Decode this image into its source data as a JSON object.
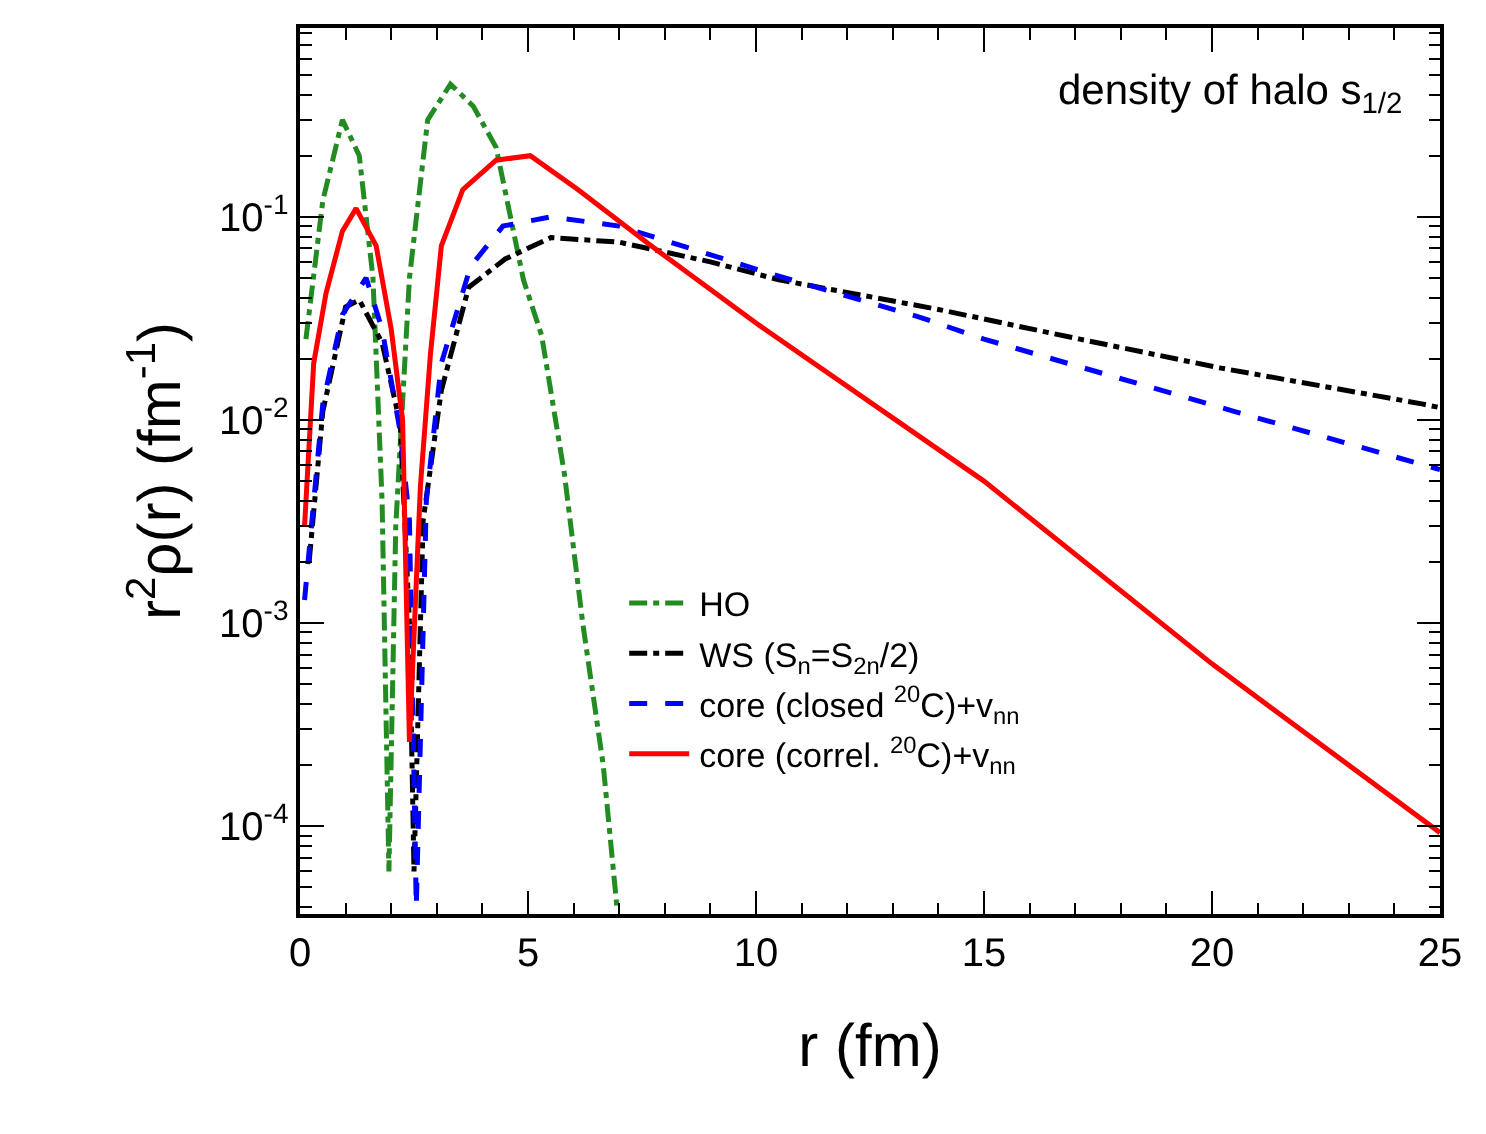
{
  "chart_data": {
    "type": "line",
    "title": "density of halo s$_{1/2}$",
    "xlabel": "r (fm)",
    "ylabel": "r$^{2}$ρ(r) (fm$^{-1}$)",
    "log": "y",
    "legend": "bottom",
    "marker": "none",
    "xlim": [
      0,
      25
    ],
    "xticks": [
      0,
      5,
      10,
      15,
      20,
      25
    ],
    "ylim": [
      3.7e-05,
      0.85
    ],
    "yticks": [
      {
        "value": 0.1,
        "label": "10$^{-1}$"
      },
      {
        "value": 0.01,
        "label": "10$^{-2}$"
      },
      {
        "value": 0.001,
        "label": "10$^{-3}$"
      },
      {
        "value": 0.0001,
        "label": "10$^{-4}$"
      }
    ],
    "series": [
      {
        "name": "HO",
        "color": "#228b22",
        "line_style": "dashdot",
        "x": [
          0.13,
          0.5,
          0.93,
          1.3,
          1.6,
          1.8,
          1.95,
          2.1,
          2.4,
          2.8,
          3.3,
          3.8,
          4.3,
          4.9,
          5.3,
          5.8,
          6.2,
          6.65,
          6.95
        ],
        "values": [
          0.025,
          0.12,
          0.3,
          0.2,
          0.05,
          0.004,
          6e-05,
          0.003,
          0.05,
          0.3,
          0.45,
          0.35,
          0.22,
          0.049,
          0.026,
          0.0054,
          0.001,
          0.0002,
          4e-05
        ]
      },
      {
        "name": "WS (S$_{n}$=S$_{2n}$/2)",
        "color": "#000000",
        "line_style": "dashdot",
        "x": [
          0.2,
          0.5,
          1.0,
          1.3,
          1.8,
          2.2,
          2.4,
          2.5,
          2.7,
          3.1,
          3.7,
          4.5,
          5.5,
          7,
          9,
          10.5,
          14,
          17.1,
          20.2,
          24.6,
          25
        ],
        "values": [
          0.002,
          0.011,
          0.036,
          0.039,
          0.024,
          0.0095,
          0.001,
          6e-05,
          0.0032,
          0.014,
          0.045,
          0.062,
          0.079,
          0.075,
          0.06,
          0.049,
          0.035,
          0.025,
          0.018,
          0.012,
          0.0115
        ]
      },
      {
        "name": "core (closed $^{20}$C)+v$_{nn}$",
        "color": "#0000ff",
        "line_style": "dashed",
        "x": [
          0.1,
          0.5,
          0.93,
          1.45,
          1.8,
          2.2,
          2.4,
          2.55,
          2.77,
          3.1,
          3.74,
          4.45,
          5.5,
          7,
          10.5,
          13.6,
          15,
          20.5,
          25
        ],
        "values": [
          0.0013,
          0.012,
          0.033,
          0.05,
          0.028,
          0.0087,
          0.0032,
          4e-05,
          0.004,
          0.019,
          0.057,
          0.09,
          0.1,
          0.09,
          0.051,
          0.032,
          0.025,
          0.011,
          0.0057
        ]
      },
      {
        "name": "core (correl. $^{20}$C)+v$_{nn}$",
        "color": "#ff0000",
        "line_style": "solid",
        "x": [
          0.1,
          0.3,
          0.57,
          0.93,
          1.23,
          1.67,
          2.0,
          2.25,
          2.4,
          2.64,
          2.86,
          3.1,
          3.57,
          4.3,
          5.05,
          6.1,
          7.7,
          10,
          15,
          20,
          25
        ],
        "values": [
          0.003,
          0.019,
          0.042,
          0.085,
          0.11,
          0.072,
          0.028,
          0.01,
          0.00026,
          0.0047,
          0.021,
          0.072,
          0.136,
          0.19,
          0.2,
          0.136,
          0.072,
          0.03,
          0.005,
          0.00063,
          9.3e-05
        ]
      }
    ]
  }
}
